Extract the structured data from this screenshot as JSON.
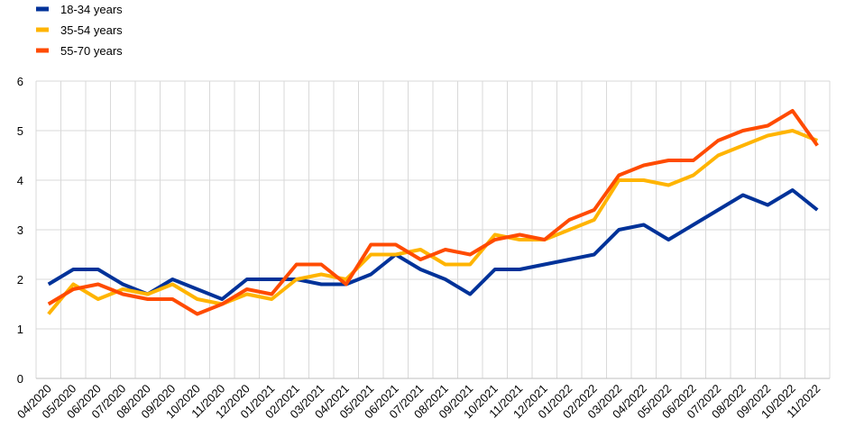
{
  "chart_data": {
    "type": "line",
    "categories": [
      "04/2020",
      "05/2020",
      "06/2020",
      "07/2020",
      "08/2020",
      "09/2020",
      "10/2020",
      "11/2020",
      "12/2020",
      "01/2021",
      "02/2021",
      "03/2021",
      "04/2021",
      "05/2021",
      "06/2021",
      "07/2021",
      "08/2021",
      "09/2021",
      "10/2021",
      "11/2021",
      "12/2021",
      "01/2022",
      "02/2022",
      "03/2022",
      "04/2022",
      "05/2022",
      "06/2022",
      "07/2022",
      "08/2022",
      "09/2022",
      "10/2022",
      "11/2022"
    ],
    "series": [
      {
        "name": "18-34 years",
        "color": "#003299",
        "values": [
          1.9,
          2.2,
          2.2,
          1.9,
          1.7,
          2.0,
          1.8,
          1.6,
          2.0,
          2.0,
          2.0,
          1.9,
          1.9,
          2.1,
          2.5,
          2.2,
          2.0,
          1.7,
          2.2,
          2.2,
          2.3,
          2.4,
          2.5,
          3.0,
          3.1,
          2.8,
          3.1,
          3.4,
          3.7,
          3.5,
          3.8,
          3.4
        ]
      },
      {
        "name": "35-54 years",
        "color": "#ffb400",
        "values": [
          1.3,
          1.9,
          1.6,
          1.8,
          1.7,
          1.9,
          1.6,
          1.5,
          1.7,
          1.6,
          2.0,
          2.1,
          2.0,
          2.5,
          2.5,
          2.6,
          2.3,
          2.3,
          2.9,
          2.8,
          2.8,
          3.0,
          3.2,
          4.0,
          4.0,
          3.9,
          4.1,
          4.5,
          4.7,
          4.9,
          5.0,
          4.8
        ]
      },
      {
        "name": "55-70 years",
        "color": "#ff4b00",
        "values": [
          1.5,
          1.8,
          1.9,
          1.7,
          1.6,
          1.6,
          1.3,
          1.5,
          1.8,
          1.7,
          2.3,
          2.3,
          1.9,
          2.7,
          2.7,
          2.4,
          2.6,
          2.5,
          2.8,
          2.9,
          2.8,
          3.2,
          3.4,
          4.1,
          4.3,
          4.4,
          4.4,
          4.8,
          5.0,
          5.1,
          5.4,
          4.7
        ]
      }
    ],
    "ylim": [
      0,
      6
    ],
    "yticks": [
      0,
      1,
      2,
      3,
      4,
      5,
      6
    ],
    "grid": true,
    "legend": "top-left"
  }
}
